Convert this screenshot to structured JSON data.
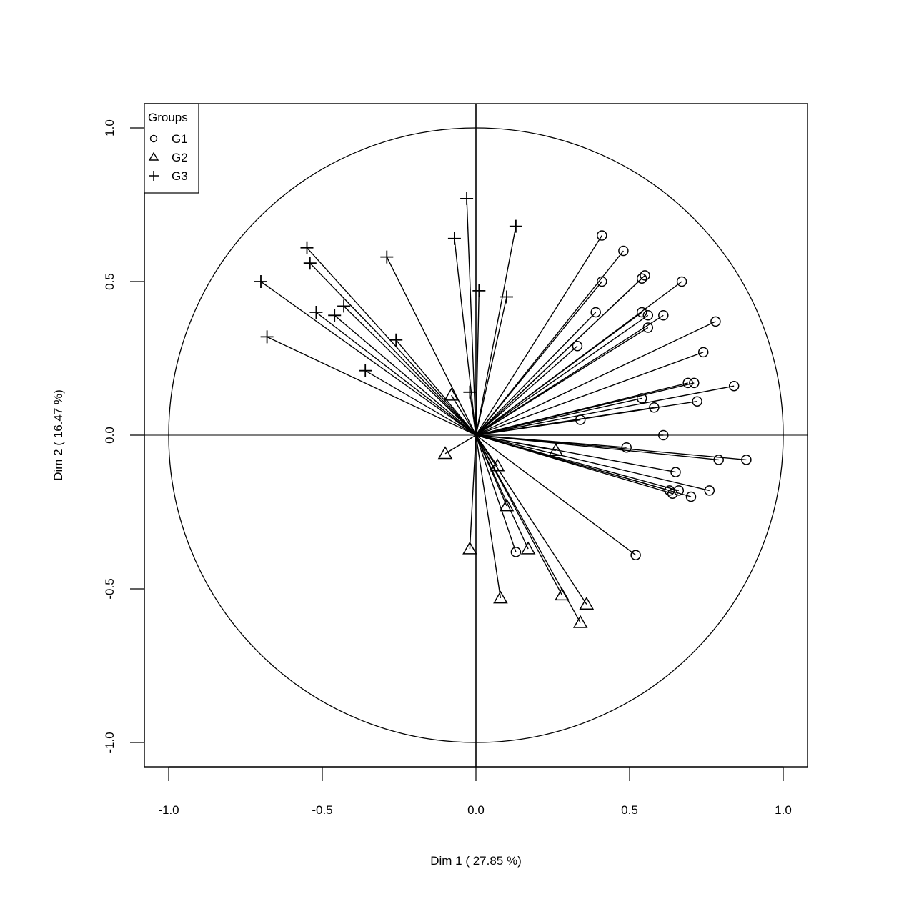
{
  "chart_data": {
    "type": "scatter",
    "xlabel": "Dim  1  ( 27.85 %)",
    "ylabel": "Dim  2  ( 16.47 %)",
    "xlim": [
      -1.0,
      1.0
    ],
    "ylim": [
      -1.0,
      1.0
    ],
    "x_ticks": [
      "-1.0",
      "-0.5",
      "0.0",
      "0.5",
      "1.0"
    ],
    "y_ticks": [
      "-1.0",
      "-0.5",
      "0.0",
      "0.5",
      "1.0"
    ],
    "x_tick_values": [
      -1.0,
      -0.5,
      0.0,
      0.5,
      1.0
    ],
    "y_tick_values": [
      -1.0,
      -0.5,
      0.0,
      0.5,
      1.0
    ],
    "grid": false,
    "unit_circle": true,
    "legend": {
      "title": "Groups",
      "position": "top-left",
      "entries": [
        {
          "label": "G1",
          "marker": "circle"
        },
        {
          "label": "G2",
          "marker": "triangle"
        },
        {
          "label": "G3",
          "marker": "plus"
        }
      ]
    },
    "series": [
      {
        "name": "G1",
        "marker": "circle",
        "points": [
          [
            0.41,
            0.65
          ],
          [
            0.48,
            0.6
          ],
          [
            0.55,
            0.52
          ],
          [
            0.54,
            0.51
          ],
          [
            0.67,
            0.5
          ],
          [
            0.41,
            0.5
          ],
          [
            0.39,
            0.4
          ],
          [
            0.54,
            0.4
          ],
          [
            0.56,
            0.39
          ],
          [
            0.61,
            0.39
          ],
          [
            0.56,
            0.35
          ],
          [
            0.78,
            0.37
          ],
          [
            0.74,
            0.27
          ],
          [
            0.33,
            0.29
          ],
          [
            0.69,
            0.17
          ],
          [
            0.71,
            0.17
          ],
          [
            0.84,
            0.16
          ],
          [
            0.54,
            0.12
          ],
          [
            0.58,
            0.09
          ],
          [
            0.72,
            0.11
          ],
          [
            0.34,
            0.05
          ],
          [
            0.61,
            0.0
          ],
          [
            0.49,
            -0.04
          ],
          [
            0.79,
            -0.08
          ],
          [
            0.88,
            -0.08
          ],
          [
            0.65,
            -0.12
          ],
          [
            0.63,
            -0.18
          ],
          [
            0.66,
            -0.18
          ],
          [
            0.64,
            -0.19
          ],
          [
            0.7,
            -0.2
          ],
          [
            0.76,
            -0.18
          ],
          [
            0.13,
            -0.38
          ],
          [
            0.52,
            -0.39
          ]
        ]
      },
      {
        "name": "G2",
        "marker": "triangle",
        "points": [
          [
            -0.08,
            0.13
          ],
          [
            -0.1,
            -0.06
          ],
          [
            0.26,
            -0.05
          ],
          [
            0.07,
            -0.1
          ],
          [
            0.1,
            -0.23
          ],
          [
            -0.02,
            -0.37
          ],
          [
            0.17,
            -0.37
          ],
          [
            0.08,
            -0.53
          ],
          [
            0.28,
            -0.52
          ],
          [
            0.36,
            -0.55
          ],
          [
            0.34,
            -0.61
          ]
        ]
      },
      {
        "name": "G3",
        "marker": "plus",
        "points": [
          [
            -0.03,
            0.77
          ],
          [
            0.13,
            0.68
          ],
          [
            -0.07,
            0.64
          ],
          [
            -0.55,
            0.61
          ],
          [
            -0.54,
            0.56
          ],
          [
            -0.29,
            0.58
          ],
          [
            -0.7,
            0.5
          ],
          [
            0.01,
            0.47
          ],
          [
            0.1,
            0.45
          ],
          [
            -0.43,
            0.42
          ],
          [
            -0.52,
            0.4
          ],
          [
            -0.46,
            0.39
          ],
          [
            -0.26,
            0.31
          ],
          [
            -0.36,
            0.21
          ],
          [
            -0.68,
            0.32
          ],
          [
            -0.02,
            0.14
          ]
        ]
      }
    ]
  }
}
